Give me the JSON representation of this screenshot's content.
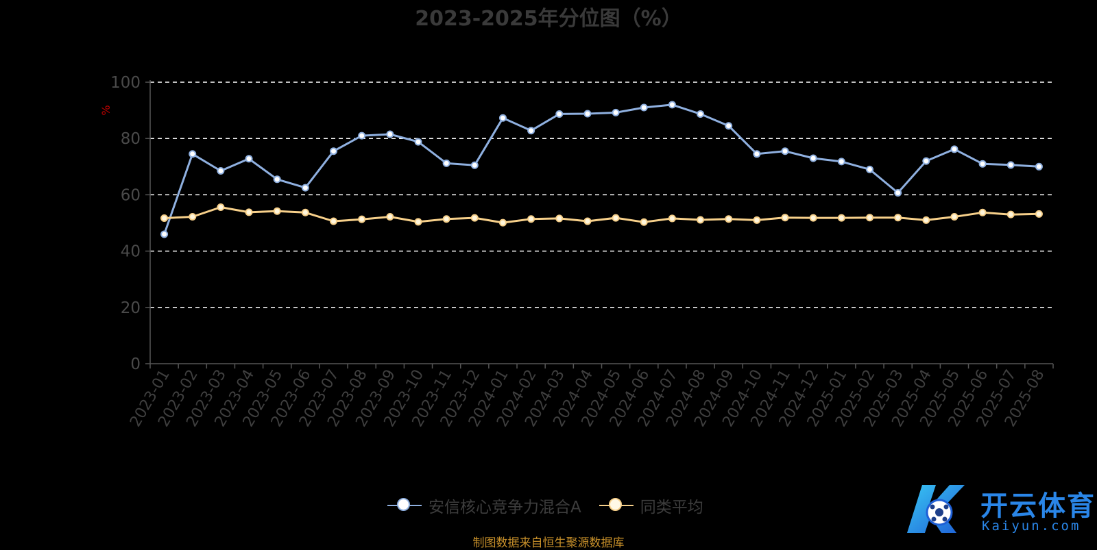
{
  "chart_data": {
    "type": "line",
    "title": "2023-2025年分位图（%）",
    "ylabel": "%",
    "ylim": [
      0,
      100
    ],
    "yticks": [
      0,
      20,
      40,
      60,
      80,
      100
    ],
    "grid": true,
    "legend_position": "bottom",
    "categories": [
      "2023-01",
      "2023-02",
      "2023-03",
      "2023-04",
      "2023-05",
      "2023-06",
      "2023-07",
      "2023-08",
      "2023-09",
      "2023-10",
      "2023-11",
      "2023-12",
      "2024-01",
      "2024-02",
      "2024-03",
      "2024-04",
      "2024-05",
      "2024-06",
      "2024-07",
      "2024-08",
      "2024-09",
      "2024-10",
      "2024-11",
      "2024-12",
      "2025-01",
      "2025-02",
      "2025-03",
      "2025-04",
      "2025-05",
      "2025-06",
      "2025-07",
      "2025-08"
    ],
    "series": [
      {
        "name": "安信核心竞争力混合A",
        "color": "#8fb0e0",
        "values": [
          46,
          74.5,
          68.5,
          72.8,
          65.5,
          62.5,
          75.5,
          81,
          81.5,
          78.8,
          71.2,
          70.5,
          87.3,
          82.8,
          88.7,
          88.8,
          89.2,
          91,
          92,
          88.7,
          84.5,
          74.5,
          75.5,
          73,
          71.8,
          69,
          60.7,
          72,
          76.2,
          71,
          70.6,
          70
        ]
      },
      {
        "name": "同类平均",
        "color": "#f7d08a",
        "values": [
          51.7,
          52.2,
          55.6,
          53.8,
          54.2,
          53.7,
          50.6,
          51.3,
          52.2,
          50.4,
          51.4,
          51.8,
          50.1,
          51.4,
          51.6,
          50.6,
          51.8,
          50.3,
          51.6,
          51.1,
          51.4,
          51,
          51.9,
          51.8,
          51.8,
          51.9,
          51.9,
          51,
          52.2,
          53.7,
          53,
          53.2
        ]
      }
    ]
  },
  "source": "制图数据来自恒生聚源数据库",
  "logo": {
    "text": "开云体育",
    "sub": "Kaiyun.com"
  }
}
